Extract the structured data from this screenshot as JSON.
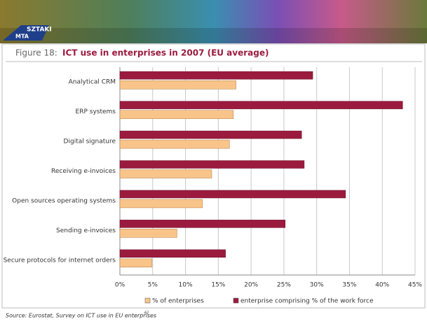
{
  "header": {
    "logo_left": "MTA",
    "logo_right": "SZTAKI"
  },
  "chart_data": {
    "type": "hbar",
    "figure_label": "Figure 18:",
    "title": "ICT use in enterprises in 2007 (EU average)",
    "categories": [
      "Analytical CRM",
      "ERP systems",
      "Digital signature",
      "Receiving e-invoices",
      "Open sources operating systems",
      "Sending e-invoices",
      "Secure protocols for internet orders"
    ],
    "series": [
      {
        "name": "enterprise comprising % of the work force",
        "color": "#9b1b3f",
        "values": [
          29.4,
          43.1,
          27.7,
          28.1,
          34.4,
          25.2,
          16.1
        ]
      },
      {
        "name": "% of enterprises",
        "color": "#f9c48a",
        "values": [
          17.7,
          17.3,
          16.7,
          14.0,
          12.6,
          8.7,
          4.9
        ]
      }
    ],
    "legend_order": [
      1,
      0
    ],
    "xlim": [
      0,
      45
    ],
    "xticks": [
      {
        "value": 0,
        "label": "0%"
      },
      {
        "value": 5,
        "label": "5%"
      },
      {
        "value": 10,
        "label": "10%"
      },
      {
        "value": 15,
        "label": "15%"
      },
      {
        "value": 20,
        "label": "20%"
      },
      {
        "value": 25,
        "label": "25%"
      },
      {
        "value": 30,
        "label": "30%"
      },
      {
        "value": 35,
        "label": "35%"
      },
      {
        "value": 40,
        "label": "40%"
      },
      {
        "value": 45,
        "label": "45%"
      }
    ],
    "grid": true,
    "source": "Source: Eurostat, Survey on ICT use in EU enterprises",
    "source_note": "62"
  }
}
